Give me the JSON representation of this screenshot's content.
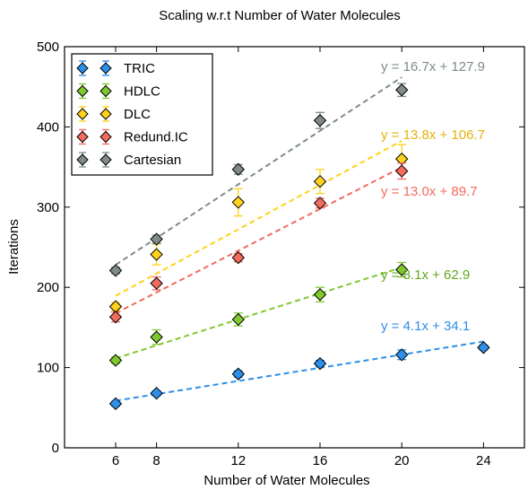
{
  "chart_data": {
    "type": "scatter",
    "title": "Scaling w.r.t Number of Water Molecules",
    "xlabel": "Number of Water Molecules",
    "ylabel": "Iterations",
    "xlim": [
      3.5,
      26
    ],
    "ylim": [
      0,
      500
    ],
    "xticks": [
      6,
      8,
      12,
      16,
      20,
      24
    ],
    "yticks": [
      0,
      100,
      200,
      300,
      400,
      500
    ],
    "legend_position": "top-left",
    "grid": false,
    "series": [
      {
        "name": "TRIC",
        "color": "#2e8fe8",
        "x": [
          6,
          8,
          12,
          16,
          20,
          24
        ],
        "y": [
          55,
          68,
          92,
          105,
          116,
          125
        ],
        "err": [
          3,
          3,
          4,
          4,
          6,
          3
        ],
        "fit": {
          "label": "y = 4.1x + 34.1",
          "slope": 4.1,
          "intercept": 34.1,
          "x_range": [
            6,
            24
          ],
          "label_color": "#2e8fe8"
        }
      },
      {
        "name": "HDLC",
        "color": "#7ec92e",
        "x": [
          6,
          8,
          12,
          16,
          20
        ],
        "y": [
          109,
          138,
          160,
          191,
          222
        ],
        "err": [
          4,
          9,
          8,
          9,
          9
        ],
        "fit": {
          "label": "y = 8.1x + 62.9",
          "slope": 8.1,
          "intercept": 62.9,
          "x_range": [
            6,
            20
          ],
          "label_color": "#62a81f"
        }
      },
      {
        "name": "DLC",
        "color": "#ffd21c",
        "x": [
          6,
          8,
          12,
          16,
          20
        ],
        "y": [
          176,
          241,
          306,
          332,
          360
        ],
        "err": [
          5,
          13,
          17,
          15,
          18
        ],
        "fit": {
          "label": "y = 13.8x + 106.7",
          "slope": 13.8,
          "intercept": 106.7,
          "x_range": [
            6,
            20
          ],
          "label_color": "#e5b20c"
        }
      },
      {
        "name": "Redund.IC",
        "color": "#f26b5e",
        "x": [
          6,
          8,
          12,
          16,
          20
        ],
        "y": [
          163,
          205,
          237,
          305,
          345
        ],
        "err": [
          6,
          8,
          5,
          6,
          10
        ],
        "fit": {
          "label": "y = 13.0x + 89.7",
          "slope": 13.0,
          "intercept": 89.7,
          "x_range": [
            6,
            20
          ],
          "label_color": "#f26b5e"
        }
      },
      {
        "name": "Cartesian",
        "color": "#7f8c8a",
        "x": [
          6,
          8,
          12,
          16,
          20
        ],
        "y": [
          221,
          260,
          347,
          408,
          446
        ],
        "err": [
          4,
          5,
          6,
          10,
          8
        ],
        "fit": {
          "label": "y = 16.7x + 127.9",
          "slope": 16.7,
          "intercept": 127.9,
          "x_range": [
            6,
            20
          ],
          "label_color": "#7f8c8a"
        }
      }
    ]
  }
}
